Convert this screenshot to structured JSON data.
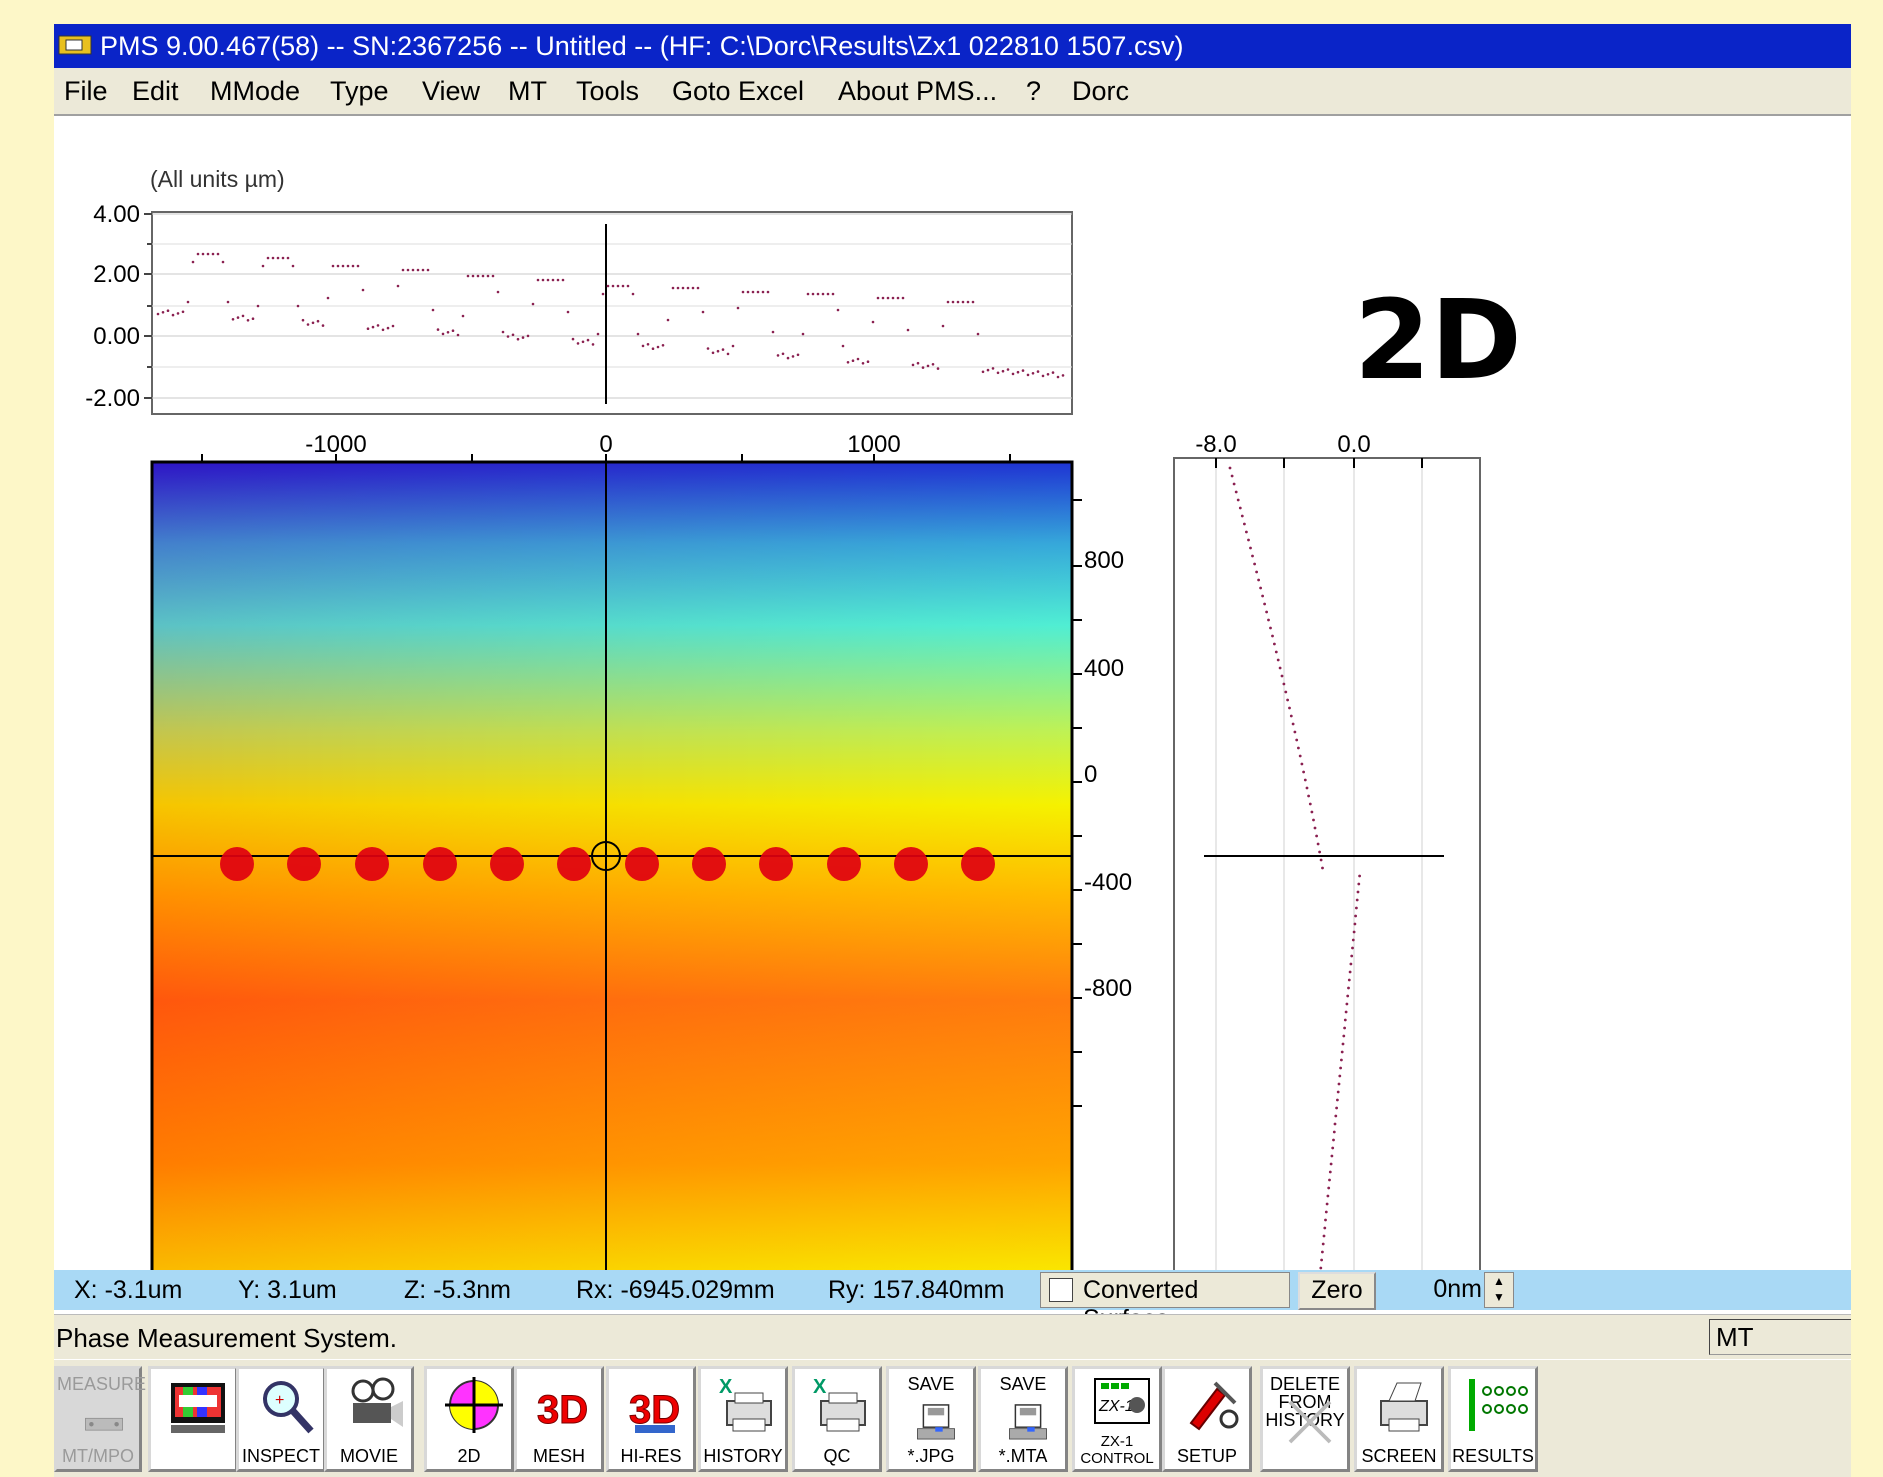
{
  "window": {
    "title": "PMS 9.00.467(58) -- SN:2367256 -- Untitled --  (HF: C:\\Dorc\\Results\\Zx1 022810 1507.csv)",
    "title_bar_color": "#0a24c8"
  },
  "menu": [
    "File",
    "Edit",
    "MMode",
    "Type",
    "View",
    "MT",
    "Tools",
    "Goto Excel",
    "About PMS...",
    "?",
    "Dorc"
  ],
  "units_note": "(All units µm)",
  "overlay_label": "2D",
  "profile_plot": {
    "y_ticks": [
      "4.00",
      "2.00",
      "0.00",
      "-2.00"
    ]
  },
  "map": {
    "x_ticks": [
      "-1000",
      "0",
      "1000"
    ],
    "y_ticks": [
      "800",
      "400",
      "0",
      "-400",
      "-800"
    ],
    "spot_count": 13
  },
  "side_profile": {
    "x_ticks": [
      "-8.0",
      "0.0"
    ]
  },
  "status": {
    "x": "X:  -3.1um",
    "y": "Y:  3.1um",
    "z": "Z:  -5.3nm",
    "rx": "Rx: -6945.029mm",
    "ry": "Ry: 157.840mm",
    "converted_surface": "Converted Surface",
    "zero": "Zero",
    "offset": "0nm"
  },
  "info": {
    "message": "Phase Measurement System.",
    "mode": "MT"
  },
  "toolbar": [
    {
      "id": "measure",
      "top": "MEASURE",
      "label": "MT/MPO",
      "icon": "measure-icon",
      "disabled": true
    },
    {
      "id": "video",
      "top": "",
      "label": "",
      "icon": "video-icon"
    },
    {
      "id": "inspect",
      "top": "",
      "label": "INSPECT",
      "icon": "magnifier-icon"
    },
    {
      "id": "movie",
      "top": "",
      "label": "MOVIE",
      "icon": "film-projector-icon"
    },
    {
      "id": "2d",
      "top": "",
      "label": "2D",
      "icon": "target-2d-icon"
    },
    {
      "id": "mesh",
      "top": "",
      "label": "MESH",
      "icon": "3d-mesh-icon"
    },
    {
      "id": "hires",
      "top": "",
      "label": "HI-RES",
      "icon": "3d-hires-icon"
    },
    {
      "id": "history",
      "top": "",
      "label": "HISTORY",
      "icon": "excel-printer-icon"
    },
    {
      "id": "qc",
      "top": "",
      "label": "QC",
      "icon": "excel-printer-icon"
    },
    {
      "id": "savejpg",
      "top": "SAVE",
      "label": "*.JPG",
      "icon": "save-disk-icon"
    },
    {
      "id": "savemta",
      "top": "SAVE",
      "label": "*.MTA",
      "icon": "save-disk-icon"
    },
    {
      "id": "zx1",
      "top": "",
      "label": "ZX-1 CONTROL",
      "icon": "zx1-control-icon"
    },
    {
      "id": "setup",
      "top": "",
      "label": "SETUP",
      "icon": "tools-icon"
    },
    {
      "id": "delete",
      "top": "DELETE FROM HISTORY",
      "label": "",
      "icon": "delete-x-icon"
    },
    {
      "id": "screen",
      "top": "",
      "label": "SCREEN",
      "icon": "printer-icon"
    },
    {
      "id": "results",
      "top": "",
      "label": "RESULTS",
      "icon": "results-grid-icon"
    }
  ]
}
